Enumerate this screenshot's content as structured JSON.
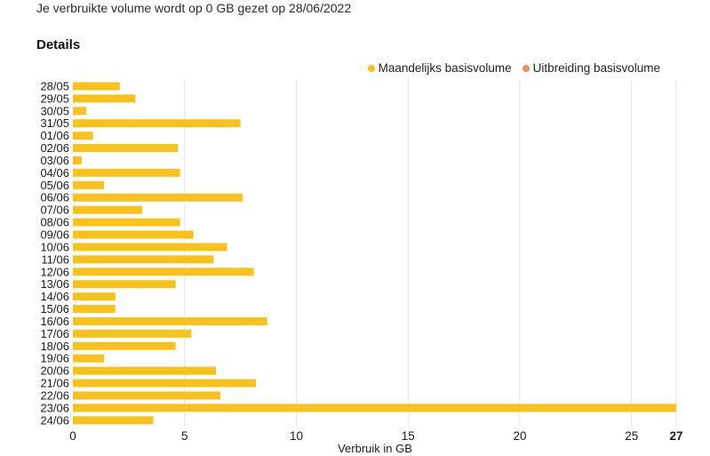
{
  "header": {
    "reset_note": "Je verbruikte volume wordt op 0 GB gezet op 28/06/2022",
    "section_title": "Details"
  },
  "legend": {
    "items": [
      {
        "label": "Maandelijks basisvolume",
        "color": "#F8C21C"
      },
      {
        "label": "Uitbreiding basisvolume",
        "color": "#EE8F5A"
      }
    ]
  },
  "chart_data": {
    "type": "bar",
    "orientation": "horizontal",
    "categories": [
      "28/05",
      "29/05",
      "30/05",
      "31/05",
      "01/06",
      "02/06",
      "03/06",
      "04/06",
      "05/06",
      "06/06",
      "07/06",
      "08/06",
      "09/06",
      "10/06",
      "11/06",
      "12/06",
      "13/06",
      "14/06",
      "15/06",
      "16/06",
      "17/06",
      "18/06",
      "19/06",
      "20/06",
      "21/06",
      "22/06",
      "23/06",
      "24/06"
    ],
    "series": [
      {
        "name": "Maandelijks basisvolume",
        "color": "#F8C21C",
        "values": [
          2.1,
          2.8,
          0.6,
          7.5,
          0.9,
          4.7,
          0.4,
          4.8,
          1.4,
          7.6,
          3.1,
          4.8,
          5.4,
          6.9,
          6.3,
          8.1,
          4.6,
          1.9,
          1.9,
          8.7,
          5.3,
          4.6,
          1.4,
          6.4,
          8.2,
          6.6,
          27,
          3.6
        ]
      }
    ],
    "xlabel": "Verbruik in GB",
    "xlim": [
      0,
      27
    ],
    "xticks": [
      "0",
      "5",
      "10",
      "15",
      "20",
      "25",
      "27"
    ],
    "grid": true,
    "legend_position": "top-right"
  }
}
